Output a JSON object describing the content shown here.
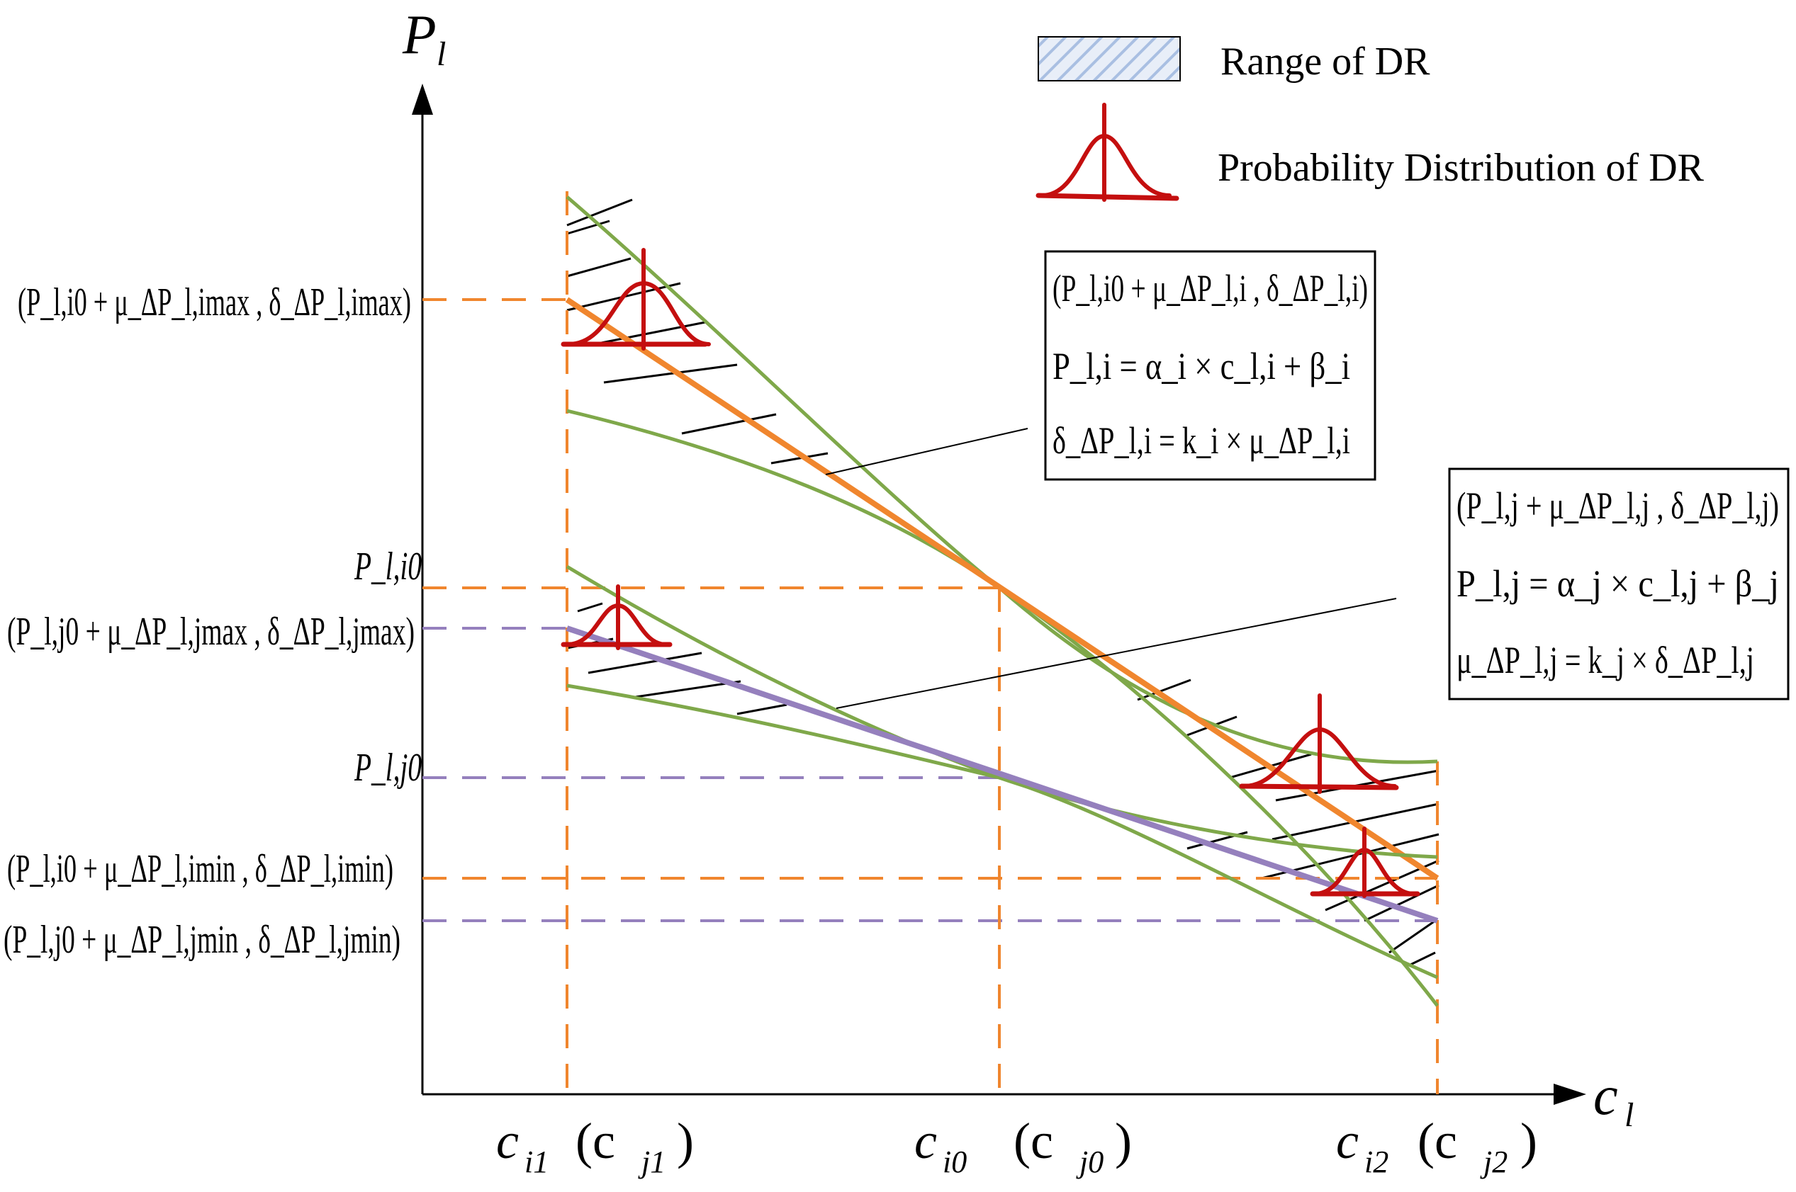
{
  "axes": {
    "y_title": "P",
    "y_title_sub": "l",
    "x_title": "c",
    "x_title_sub": "l"
  },
  "x_ticks": [
    {
      "main": "c",
      "sub": "i1",
      "paren": "(c",
      "paren_sub": "j1",
      "close": ")"
    },
    {
      "main": "c",
      "sub": "i0",
      "paren": "(c",
      "paren_sub": "j0",
      "close": ")"
    },
    {
      "main": "c",
      "sub": "i2",
      "paren": "(c",
      "paren_sub": "j2",
      "close": ")"
    }
  ],
  "y_labels": {
    "i_max": "(P_l,i0 + μ_ΔP_l,imax , δ_ΔP_l,imax)",
    "j_max": "(P_l,j0 + μ_ΔP_l,jmax , δ_ΔP_l,jmax)",
    "i0": "P_l,i0",
    "j0": "P_l,j0",
    "i_min": "(P_l,i0 + μ_ΔP_l,imin , δ_ΔP_l,imin)",
    "j_min": "(P_l,j0 + μ_ΔP_l,jmin , δ_ΔP_l,jmin)"
  },
  "legend": {
    "range_label": "Range of DR",
    "prob_label": "Probability Distribution of DR"
  },
  "box_i": {
    "line1": "(P_l,i0 + μ_ΔP_l,i , δ_ΔP_l,i)",
    "line2": "P_l,i = α_i × c_l,i + β_i",
    "line3": "δ_ΔP_l,i = k_i × μ_ΔP_l,i"
  },
  "box_j": {
    "line1": "(P_l,j + μ_ΔP_l,j , δ_ΔP_l,j)",
    "line2": "P_l,j = α_j × c_l,j + β_j",
    "line3": "μ_ΔP_l,j = k_j × δ_ΔP_l,j"
  },
  "colors": {
    "orange": "#F0862E",
    "purple": "#9580BD",
    "green": "#7FA84A",
    "red": "#C40F0F",
    "black": "#000000"
  }
}
